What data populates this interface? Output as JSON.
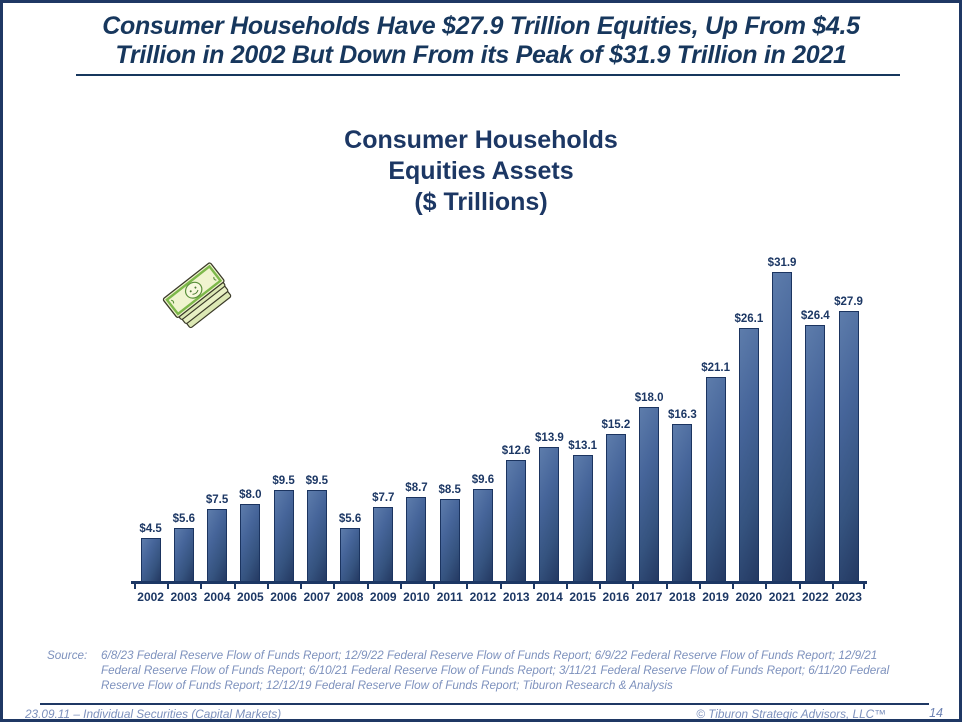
{
  "slide": {
    "title_line1": "Consumer Households Have $27.9 Trillion Equities, Up From $4.5",
    "title_line2": "Trillion in 2002 But Down From its Peak of $31.9 Trillion in 2021",
    "source_label": "Source:",
    "source_text": "6/8/23 Federal Reserve Flow of Funds Report; 12/9/22 Federal Reserve Flow of Funds Report; 6/9/22 Federal Reserve Flow of Funds Report; 12/9/21 Federal Reserve Flow of Funds Report; 6/10/21 Federal Reserve Flow of Funds Report; 3/11/21 Federal Reserve Flow of Funds Report; 6/11/20 Federal Reserve Flow of Funds Report; 12/12/19 Federal Reserve Flow of Funds Report; Tiburon Research & Analysis",
    "footer_left": "23.09.11 – Individual Securities (Capital Markets)",
    "footer_right": "© Tiburon Strategic Advisors, LLC™",
    "page_number": "14"
  },
  "icons": {
    "money_stack": "money-stack-clipart"
  },
  "colors": {
    "navy_text": "#17375D",
    "bar_fill_dark": "#243962",
    "bar_fill_light": "#5D7CAB",
    "bar_border": "#1B3460",
    "muted_blue_text": "#7D91BD",
    "money_green": "#7DB84A",
    "money_pale": "#F0F4CF"
  },
  "chart_data": {
    "type": "bar",
    "title": "Consumer Households Equities Assets ($ Trillions)",
    "title_lines": [
      "Consumer Households",
      "Equities Assets",
      "($ Trillions)"
    ],
    "categories": [
      "2002",
      "2003",
      "2004",
      "2005",
      "2006",
      "2007",
      "2008",
      "2009",
      "2010",
      "2011",
      "2012",
      "2013",
      "2014",
      "2015",
      "2016",
      "2017",
      "2018",
      "2019",
      "2020",
      "2021",
      "2022",
      "2023"
    ],
    "values": [
      4.5,
      5.6,
      7.5,
      8.0,
      9.5,
      9.5,
      5.6,
      7.7,
      8.7,
      8.5,
      9.6,
      12.6,
      13.9,
      13.1,
      15.2,
      18.0,
      16.3,
      21.1,
      26.1,
      31.9,
      26.4,
      27.9
    ],
    "value_prefix": "$",
    "value_decimals": 1,
    "xlabel": "",
    "ylabel": "",
    "ylim": [
      0,
      35
    ],
    "grid": false,
    "legend": null,
    "data_labels": "outside-end"
  }
}
